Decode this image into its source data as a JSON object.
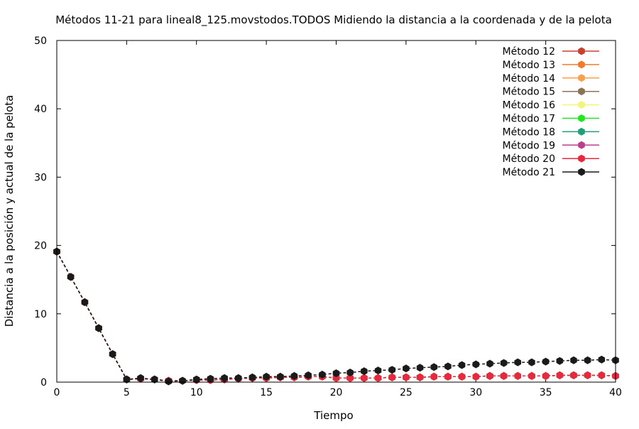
{
  "chart_data": {
    "type": "line",
    "title": "Métodos 11-21 para lineal8_125.movstodos.TODOS Midiendo la distancia a la coordenada y de la pelota",
    "xlabel": "Tiempo",
    "ylabel": "Distancia a la posición y actual de la pelota",
    "xlim": [
      0,
      40
    ],
    "ylim": [
      0,
      50
    ],
    "x_ticks": [
      "0",
      "5",
      "10",
      "15",
      "20",
      "25",
      "30",
      "35",
      "40"
    ],
    "y_ticks": [
      "0",
      "10",
      "20",
      "30",
      "40",
      "50"
    ],
    "legend_position": "top-right",
    "x": [
      0,
      1,
      2,
      3,
      4,
      5,
      6,
      7,
      8,
      9,
      10,
      11,
      12,
      13,
      14,
      15,
      16,
      17,
      18,
      19,
      20,
      21,
      22,
      23,
      24,
      25,
      26,
      27,
      28,
      29,
      30,
      31,
      32,
      33,
      34,
      35,
      36,
      37,
      38,
      39,
      40
    ],
    "series": [
      {
        "name": "Método 12",
        "color": "#c8402f",
        "values": [
          19.1,
          15.4,
          11.7,
          7.9,
          4.1,
          0.4,
          0.5,
          0.4,
          0.2,
          0.2,
          0.3,
          0.3,
          0.4,
          0.5,
          0.6,
          0.6,
          0.7,
          0.7,
          0.8,
          0.8,
          0.6,
          0.6,
          0.6,
          0.6,
          0.7,
          0.7,
          0.7,
          0.8,
          0.8,
          0.8,
          0.8,
          0.9,
          0.9,
          0.9,
          0.9,
          0.9,
          1.0,
          1.0,
          1.0,
          1.0,
          0.9
        ]
      },
      {
        "name": "Método 13",
        "color": "#f07b2e",
        "values": [
          19.1,
          15.4,
          11.7,
          7.9,
          4.1,
          0.4,
          0.5,
          0.4,
          0.2,
          0.2,
          0.3,
          0.3,
          0.4,
          0.5,
          0.6,
          0.6,
          0.7,
          0.7,
          0.8,
          0.8,
          0.6,
          0.6,
          0.6,
          0.6,
          0.7,
          0.7,
          0.7,
          0.8,
          0.8,
          0.8,
          0.8,
          0.9,
          0.9,
          0.9,
          0.9,
          0.9,
          1.0,
          1.0,
          1.0,
          1.0,
          0.9
        ]
      },
      {
        "name": "Método 14",
        "color": "#f7a24a",
        "values": [
          19.1,
          15.4,
          11.7,
          7.9,
          4.1,
          0.4,
          0.5,
          0.4,
          0.2,
          0.2,
          0.3,
          0.3,
          0.4,
          0.5,
          0.6,
          0.6,
          0.7,
          0.7,
          0.8,
          0.8,
          0.6,
          0.6,
          0.6,
          0.6,
          0.7,
          0.7,
          0.7,
          0.8,
          0.8,
          0.8,
          0.8,
          0.9,
          0.9,
          0.9,
          0.9,
          0.9,
          1.0,
          1.0,
          1.0,
          1.0,
          0.9
        ]
      },
      {
        "name": "Método 15",
        "color": "#8a7355",
        "values": [
          19.1,
          15.4,
          11.7,
          7.9,
          4.1,
          0.4,
          0.5,
          0.4,
          0.2,
          0.2,
          0.3,
          0.3,
          0.4,
          0.5,
          0.6,
          0.6,
          0.7,
          0.7,
          0.8,
          0.8,
          0.6,
          0.6,
          0.6,
          0.6,
          0.7,
          0.7,
          0.7,
          0.8,
          0.8,
          0.8,
          0.8,
          0.9,
          0.9,
          0.9,
          0.9,
          0.9,
          1.0,
          1.0,
          1.0,
          1.0,
          0.9
        ]
      },
      {
        "name": "Método 16",
        "color": "#f4f47a",
        "values": [
          19.1,
          15.4,
          11.7,
          7.9,
          4.1,
          0.4,
          0.5,
          0.4,
          0.2,
          0.2,
          0.3,
          0.3,
          0.4,
          0.5,
          0.6,
          0.6,
          0.7,
          0.7,
          0.8,
          0.8,
          0.6,
          0.6,
          0.6,
          0.6,
          0.7,
          0.7,
          0.7,
          0.8,
          0.8,
          0.8,
          0.8,
          0.9,
          0.9,
          0.9,
          0.9,
          0.9,
          1.0,
          1.0,
          1.0,
          1.0,
          0.9
        ]
      },
      {
        "name": "Método 17",
        "color": "#22e622",
        "values": [
          19.1,
          15.4,
          11.7,
          7.9,
          4.1,
          0.4,
          0.5,
          0.4,
          0.2,
          0.2,
          0.3,
          0.3,
          0.4,
          0.5,
          0.6,
          0.6,
          0.7,
          0.7,
          0.8,
          0.8,
          0.6,
          0.6,
          0.6,
          0.6,
          0.7,
          0.7,
          0.7,
          0.8,
          0.8,
          0.8,
          0.8,
          0.9,
          0.9,
          0.9,
          0.9,
          0.9,
          1.0,
          1.0,
          1.0,
          1.0,
          0.9
        ]
      },
      {
        "name": "Método 18",
        "color": "#1f9e77",
        "values": [
          19.1,
          15.4,
          11.7,
          7.9,
          4.1,
          0.4,
          0.5,
          0.4,
          0.2,
          0.2,
          0.3,
          0.3,
          0.4,
          0.5,
          0.6,
          0.6,
          0.7,
          0.7,
          0.8,
          0.8,
          0.6,
          0.6,
          0.6,
          0.6,
          0.7,
          0.7,
          0.7,
          0.8,
          0.8,
          0.8,
          0.8,
          0.9,
          0.9,
          0.9,
          0.9,
          0.9,
          1.0,
          1.0,
          1.0,
          1.0,
          0.9
        ]
      },
      {
        "name": "Método 19",
        "color": "#b8408f",
        "values": [
          19.1,
          15.4,
          11.7,
          7.9,
          4.1,
          0.4,
          0.5,
          0.4,
          0.2,
          0.2,
          0.3,
          0.3,
          0.4,
          0.5,
          0.6,
          0.6,
          0.7,
          0.7,
          0.8,
          0.8,
          0.6,
          0.6,
          0.6,
          0.6,
          0.7,
          0.7,
          0.7,
          0.8,
          0.8,
          0.8,
          0.8,
          0.9,
          0.9,
          0.9,
          0.9,
          0.9,
          1.0,
          1.0,
          1.0,
          1.0,
          0.9
        ]
      },
      {
        "name": "Método 20",
        "color": "#e8283c",
        "values": [
          19.1,
          15.4,
          11.7,
          7.9,
          4.1,
          0.4,
          0.5,
          0.4,
          0.2,
          0.2,
          0.3,
          0.3,
          0.4,
          0.5,
          0.6,
          0.6,
          0.7,
          0.7,
          0.8,
          0.8,
          0.6,
          0.6,
          0.6,
          0.6,
          0.7,
          0.7,
          0.7,
          0.8,
          0.8,
          0.8,
          0.8,
          0.9,
          0.9,
          0.9,
          0.9,
          0.9,
          1.0,
          1.0,
          1.0,
          1.0,
          0.9
        ]
      },
      {
        "name": "Método 21",
        "color": "#1a1a1a",
        "values": [
          19.1,
          15.4,
          11.7,
          7.9,
          4.1,
          0.4,
          0.6,
          0.4,
          0.1,
          0.2,
          0.4,
          0.5,
          0.6,
          0.6,
          0.7,
          0.8,
          0.8,
          0.9,
          1.0,
          1.1,
          1.3,
          1.4,
          1.6,
          1.7,
          1.8,
          2.0,
          2.1,
          2.2,
          2.3,
          2.5,
          2.6,
          2.7,
          2.8,
          2.9,
          2.9,
          3.0,
          3.1,
          3.2,
          3.2,
          3.3,
          3.2
        ]
      }
    ]
  }
}
